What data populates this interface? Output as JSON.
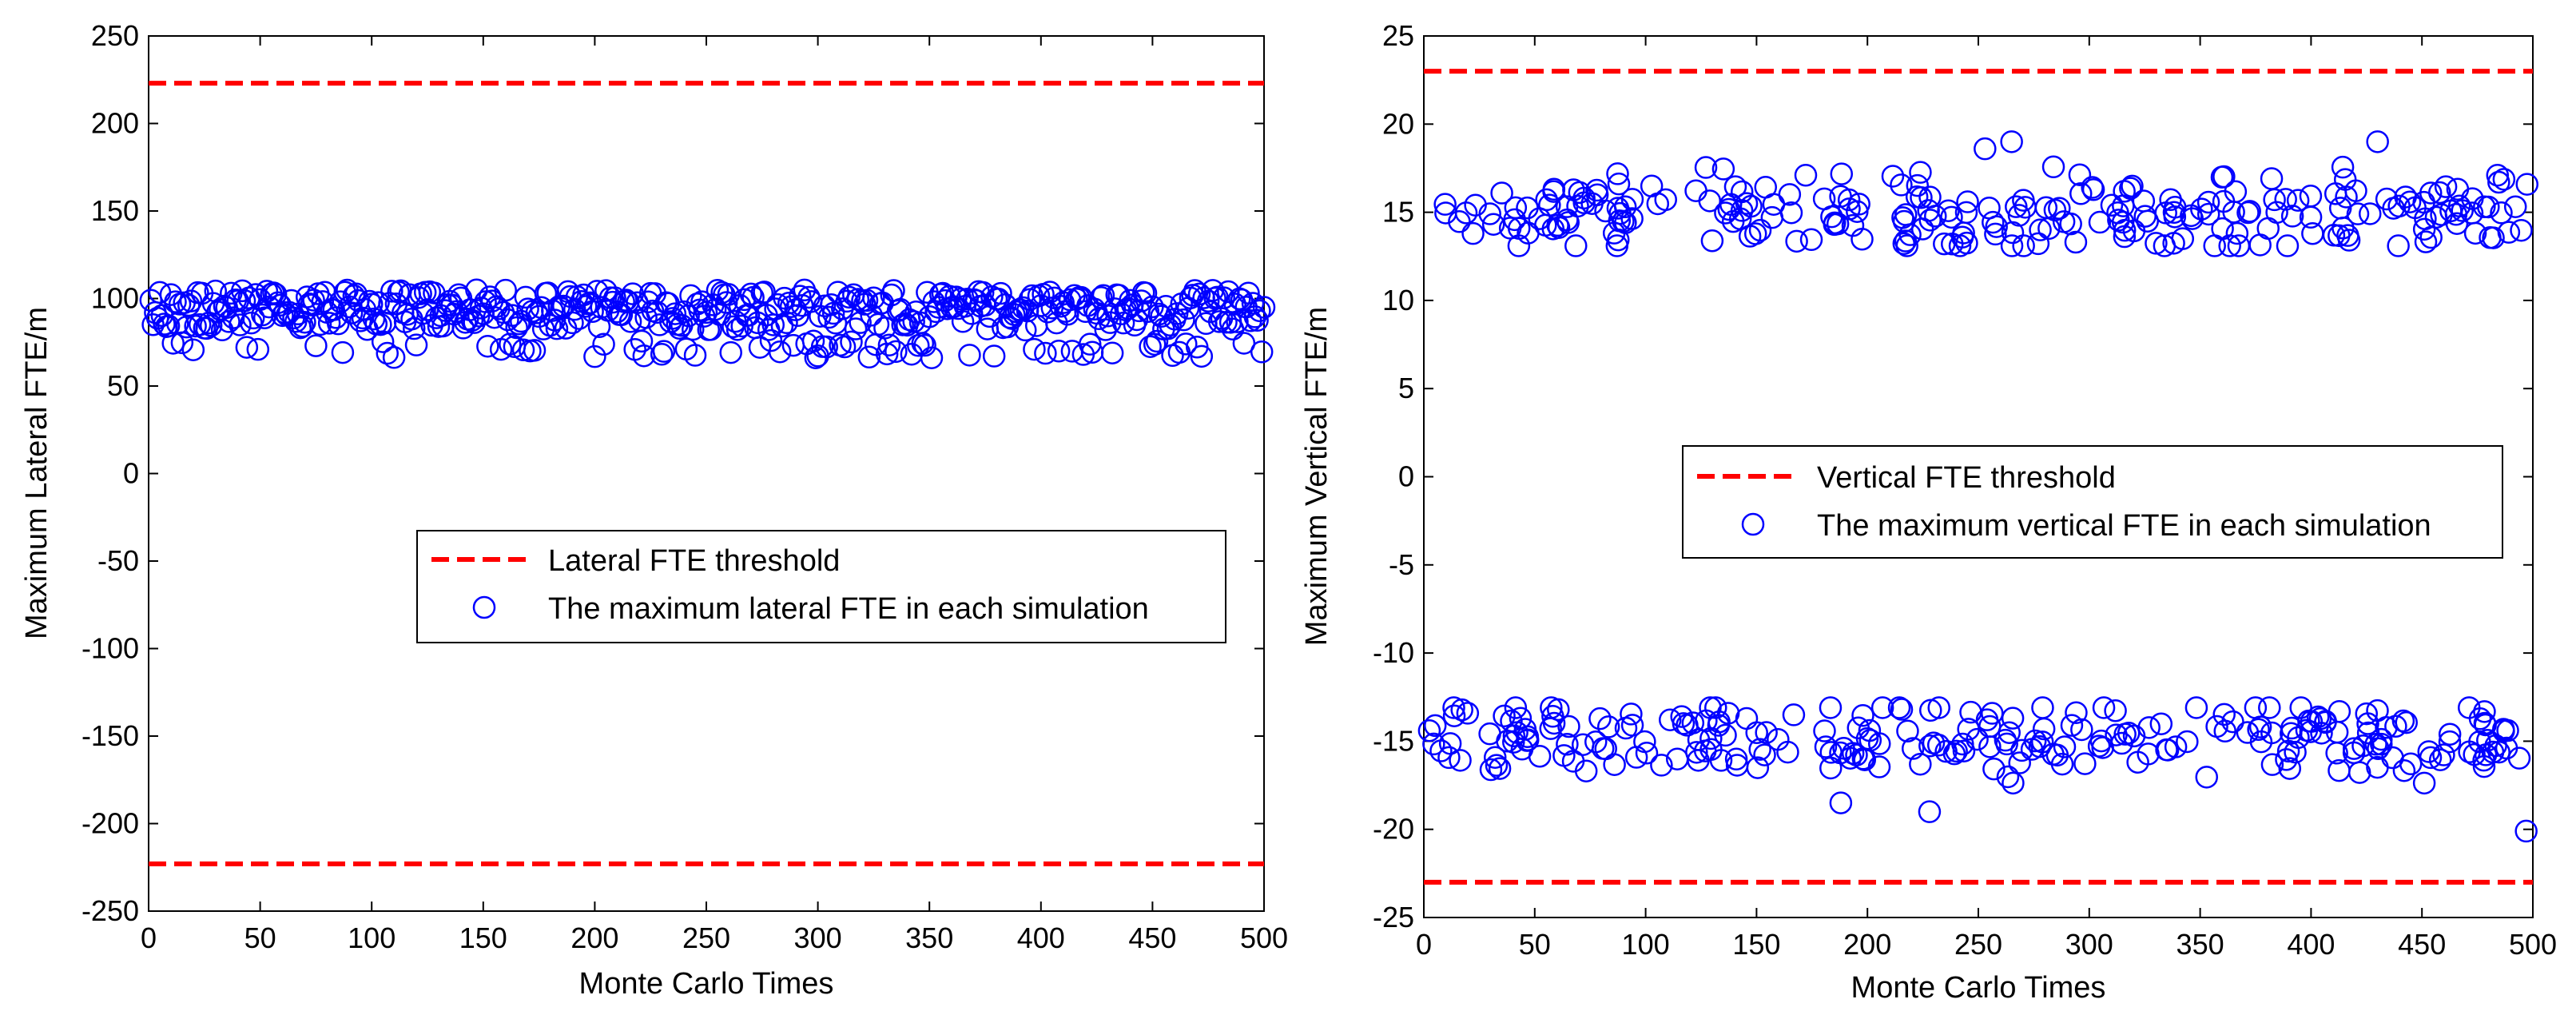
{
  "colors": {
    "threshold": "#ff0000",
    "markers": "#0000ff",
    "axes": "#000000",
    "background": "#ffffff"
  },
  "chart_data": [
    {
      "type": "scatter",
      "title": "",
      "xlabel": "Monte Carlo Times",
      "ylabel": "Maximum Lateral FTE/m",
      "xlim": [
        0,
        500
      ],
      "ylim": [
        -250,
        250
      ],
      "xticks": [
        0,
        50,
        100,
        150,
        200,
        250,
        300,
        350,
        400,
        450,
        500
      ],
      "yticks": [
        250,
        200,
        150,
        100,
        50,
        0,
        -50,
        -100,
        -150,
        -200,
        -250
      ],
      "grid": false,
      "legend_position": "center-right",
      "series": [
        {
          "name": "Lateral FTE threshold",
          "kind": "line",
          "style": "dashed",
          "color": "#ff0000",
          "y_values": [
            223,
            -223
          ]
        },
        {
          "name": "The maximum lateral FTE in each simulation",
          "kind": "markers",
          "marker": "circle-open",
          "color": "#0000ff",
          "n_points": 500,
          "band": {
            "mean": 88,
            "min": 66,
            "max": 105,
            "start_value": 99,
            "end_value": 95
          }
        }
      ]
    },
    {
      "type": "scatter",
      "title": "",
      "xlabel": "Monte Carlo Times",
      "ylabel": "Maximum Vertical FTE/m",
      "xlim": [
        0,
        500
      ],
      "ylim": [
        -25,
        25
      ],
      "xticks": [
        0,
        50,
        100,
        150,
        200,
        250,
        300,
        350,
        400,
        450,
        500
      ],
      "yticks": [
        25,
        20,
        15,
        10,
        5,
        0,
        -5,
        -10,
        -15,
        -20,
        -25
      ],
      "grid": false,
      "legend_position": "center-right",
      "series": [
        {
          "name": "Vertical FTE threshold",
          "kind": "line",
          "style": "dashed",
          "color": "#ff0000",
          "y_values": [
            23,
            -23
          ]
        },
        {
          "name": "The maximum vertical FTE in each simulation",
          "kind": "markers",
          "marker": "circle-open",
          "color": "#0000ff",
          "n_points": 500,
          "bands": [
            {
              "mean": 15,
              "min": 12.7,
              "max": 19,
              "count": 250,
              "outliers": [
                [
                  265,
                  19.0
                ],
                [
                  430,
                  19.0
                ],
                [
                  253,
                  18.6
                ]
              ]
            },
            {
              "mean": -15,
              "min": -20.1,
              "max": -12.7,
              "count": 250,
              "outliers": [
                [
                  497,
                  -20.1
                ],
                [
                  228,
                  -19.0
                ],
                [
                  188,
                  -18.5
                ]
              ]
            }
          ]
        }
      ]
    }
  ]
}
